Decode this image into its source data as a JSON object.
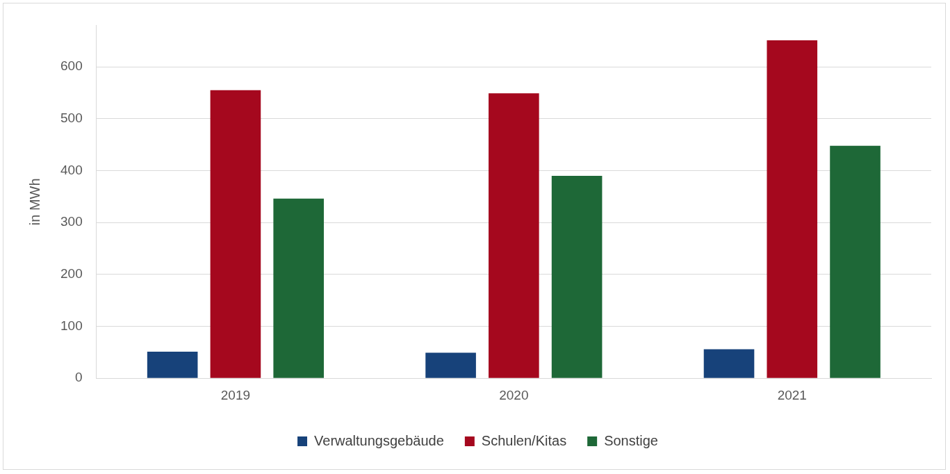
{
  "chart_data": {
    "type": "bar",
    "ylabel": "in MWh",
    "categories": [
      "2019",
      "2020",
      "2021"
    ],
    "series": [
      {
        "name": "Verwaltungsgebäude",
        "color": "#17427a",
        "values": [
          51,
          49,
          56
        ]
      },
      {
        "name": "Schulen/Kitas",
        "color": "#a5081e",
        "values": [
          555,
          549,
          651
        ]
      },
      {
        "name": "Sonstige",
        "color": "#1e6837",
        "values": [
          346,
          390,
          448
        ]
      }
    ],
    "ylim": [
      0,
      680
    ],
    "yticks": [
      0,
      100,
      200,
      300,
      400,
      500,
      600
    ],
    "grid": "y",
    "legend": "bottom"
  }
}
